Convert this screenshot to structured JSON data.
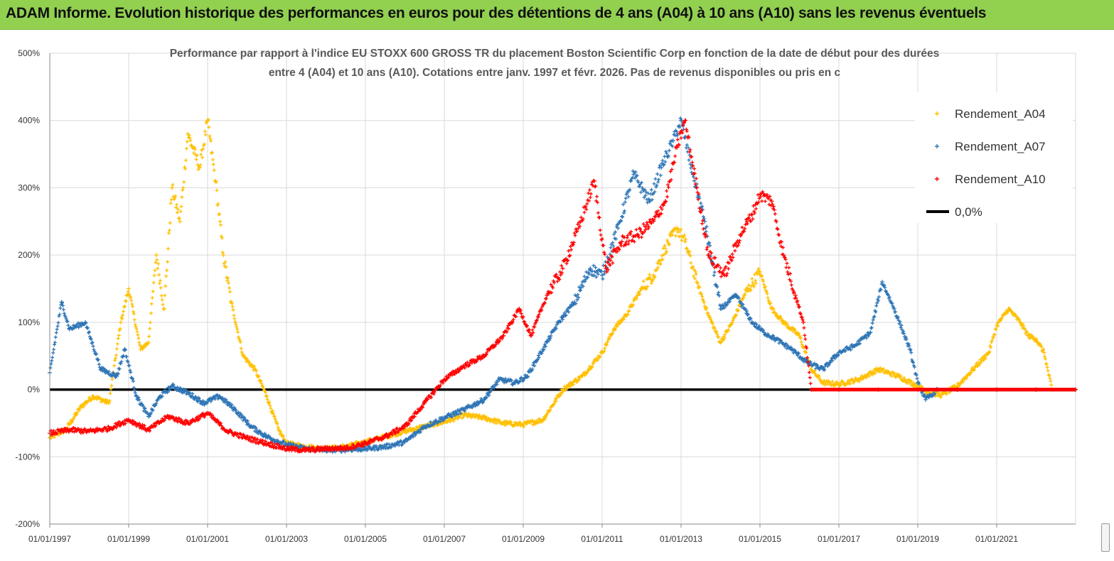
{
  "banner": {
    "title": "ADAM Informe. Evolution historique des performances en euros pour des détentions de 4 ans (A04) à 10 ans (A10) sans les revenus éventuels"
  },
  "colors": {
    "banner_bg": "#92d050",
    "A04": "#ffc000",
    "A07": "#2e75b6",
    "A10": "#ff0000",
    "zero_line": "#000000",
    "grid": "#d9d9d9"
  },
  "chart_data": {
    "type": "scatter",
    "title_lines": [
      "Performance par rapport à l'indice EU STOXX 600 GROSS TR  du placement Boston Scientific Corp en fonction de la date de début pour des durées",
      "entre 4 (A04) et 10 ans (A10). Cotations entre janv. 1997 et févr. 2026. Pas de revenus disponibles ou pris en c"
    ],
    "xlabel": "",
    "ylabel": "",
    "x_unit": "year",
    "x_range": [
      1997.0,
      2023.0
    ],
    "ylim": [
      -200,
      500
    ],
    "y_ticks": [
      500,
      400,
      300,
      200,
      100,
      0,
      -100,
      -200
    ],
    "y_tick_labels": [
      "500%",
      "400%",
      "300%",
      "200%",
      "100%",
      "0%",
      "-100%",
      "-200%"
    ],
    "x_ticks": [
      1997,
      1999,
      2001,
      2003,
      2005,
      2007,
      2009,
      2011,
      2013,
      2015,
      2017,
      2019,
      2021
    ],
    "x_tick_labels": [
      "01/01/1997",
      "01/01/1999",
      "01/01/2001",
      "01/01/2003",
      "01/01/2005",
      "01/01/2007",
      "01/01/2009",
      "01/01/2011",
      "01/01/2013",
      "01/01/2015",
      "01/01/2017",
      "01/01/2019",
      "01/01/2021"
    ],
    "grid": true,
    "legend_position": "top-right",
    "series": [
      {
        "name": "Rendement_A04",
        "marker": "+",
        "x": [
          1997.0,
          1997.4,
          1997.8,
          1998.1,
          1998.5,
          1998.8,
          1999.0,
          1999.3,
          1999.5,
          1999.7,
          1999.9,
          2000.1,
          2000.3,
          2000.5,
          2000.8,
          2001.0,
          2001.2,
          2001.4,
          2001.6,
          2001.9,
          2002.2,
          2002.5,
          2002.8,
          2003.0,
          2003.5,
          2004.0,
          2004.5,
          2005.0,
          2005.5,
          2006.0,
          2006.5,
          2007.0,
          2007.5,
          2008.0,
          2008.5,
          2009.0,
          2009.5,
          2010.0,
          2010.5,
          2011.0,
          2011.3,
          2011.6,
          2012.0,
          2012.3,
          2012.6,
          2012.9,
          2013.1,
          2013.4,
          2013.7,
          2014.0,
          2014.3,
          2014.6,
          2015.0,
          2015.3,
          2015.6,
          2016.0,
          2016.3,
          2016.6,
          2017.0,
          2017.5,
          2018.0,
          2018.5,
          2019.0,
          2019.3,
          2019.6,
          2020.0,
          2020.4,
          2020.8,
          2021.0,
          2021.3,
          2021.6,
          2021.8,
          2022.0,
          2022.2,
          2022.4,
          2023.0
        ],
        "values": [
          -72,
          -60,
          -25,
          -10,
          -20,
          100,
          150,
          60,
          70,
          200,
          120,
          300,
          250,
          380,
          330,
          400,
          310,
          200,
          130,
          50,
          30,
          -10,
          -60,
          -80,
          -85,
          -88,
          -85,
          -78,
          -70,
          -62,
          -55,
          -48,
          -38,
          -42,
          -50,
          -52,
          -45,
          0,
          20,
          55,
          90,
          110,
          150,
          170,
          210,
          240,
          220,
          160,
          110,
          70,
          100,
          140,
          175,
          120,
          100,
          80,
          30,
          10,
          8,
          15,
          30,
          20,
          5,
          -5,
          -8,
          5,
          30,
          55,
          95,
          120,
          100,
          80,
          75,
          55,
          0,
          0
        ]
      },
      {
        "name": "Rendement_A07",
        "marker": "+",
        "x": [
          1997.0,
          1997.3,
          1997.5,
          1997.9,
          1998.3,
          1998.7,
          1998.9,
          1999.2,
          1999.5,
          1999.8,
          2000.1,
          2000.5,
          2000.9,
          2001.3,
          2001.7,
          2002.1,
          2002.5,
          2003.0,
          2003.5,
          2004.0,
          2004.5,
          2005.0,
          2005.5,
          2006.0,
          2006.5,
          2007.0,
          2007.5,
          2008.0,
          2008.4,
          2008.8,
          2009.1,
          2009.5,
          2009.9,
          2010.3,
          2010.7,
          2011.0,
          2011.4,
          2011.8,
          2012.2,
          2012.5,
          2012.8,
          2013.0,
          2013.3,
          2013.6,
          2014.0,
          2014.4,
          2014.8,
          2015.1,
          2015.4,
          2015.8,
          2016.2,
          2016.6,
          2017.0,
          2017.4,
          2017.8,
          2018.1,
          2018.4,
          2018.8,
          2019.0,
          2019.2,
          2019.5,
          2020.0,
          2021.0,
          2022.0,
          2023.0
        ],
        "values": [
          25,
          130,
          90,
          100,
          30,
          20,
          60,
          -10,
          -40,
          -10,
          5,
          -5,
          -20,
          -10,
          -30,
          -55,
          -70,
          -82,
          -88,
          -90,
          -89,
          -88,
          -85,
          -78,
          -55,
          -42,
          -30,
          -15,
          15,
          10,
          20,
          60,
          100,
          130,
          180,
          170,
          240,
          320,
          280,
          330,
          370,
          400,
          320,
          250,
          120,
          140,
          100,
          85,
          75,
          60,
          40,
          30,
          55,
          65,
          85,
          160,
          120,
          60,
          10,
          -15,
          0,
          0,
          0,
          0,
          0
        ]
      },
      {
        "name": "Rendement_A10",
        "marker": "+",
        "x": [
          1997.0,
          1997.5,
          1998.0,
          1998.5,
          1999.0,
          1999.5,
          2000.0,
          2000.5,
          2001.0,
          2001.5,
          2002.0,
          2002.5,
          2003.0,
          2003.5,
          2004.0,
          2004.5,
          2005.0,
          2005.5,
          2006.0,
          2006.5,
          2007.0,
          2007.5,
          2008.0,
          2008.5,
          2008.9,
          2009.2,
          2009.6,
          2010.0,
          2010.4,
          2010.8,
          2011.1,
          2011.5,
          2011.9,
          2012.3,
          2012.6,
          2012.9,
          2013.1,
          2013.4,
          2013.7,
          2014.1,
          2014.5,
          2014.8,
          2015.0,
          2015.3,
          2015.6,
          2015.9,
          2016.1,
          2016.3,
          2017.0,
          2018.0,
          2019.0,
          2020.0,
          2021.0,
          2022.0,
          2023.0
        ],
        "values": [
          -65,
          -60,
          -62,
          -58,
          -45,
          -60,
          -40,
          -50,
          -35,
          -62,
          -72,
          -80,
          -88,
          -90,
          -88,
          -87,
          -80,
          -70,
          -55,
          -20,
          15,
          35,
          50,
          80,
          120,
          80,
          140,
          180,
          240,
          310,
          180,
          220,
          230,
          250,
          280,
          360,
          400,
          300,
          200,
          170,
          230,
          260,
          290,
          280,
          200,
          140,
          100,
          0,
          0,
          0,
          0,
          0,
          0,
          0,
          0
        ]
      }
    ],
    "reference_lines": [
      {
        "name": "0,0%",
        "value": 0
      }
    ]
  }
}
